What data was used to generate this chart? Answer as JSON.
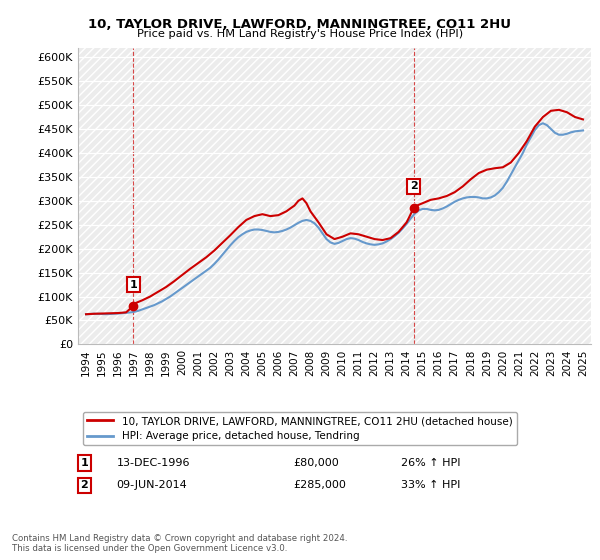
{
  "title1": "10, TAYLOR DRIVE, LAWFORD, MANNINGTREE, CO11 2HU",
  "title2": "Price paid vs. HM Land Registry's House Price Index (HPI)",
  "legend_line1": "10, TAYLOR DRIVE, LAWFORD, MANNINGTREE, CO11 2HU (detached house)",
  "legend_line2": "HPI: Average price, detached house, Tendring",
  "sale1_label": "1",
  "sale1_date": "13-DEC-1996",
  "sale1_price": "£80,000",
  "sale1_hpi": "26% ↑ HPI",
  "sale2_label": "2",
  "sale2_date": "09-JUN-2014",
  "sale2_price": "£285,000",
  "sale2_hpi": "33% ↑ HPI",
  "footnote": "Contains HM Land Registry data © Crown copyright and database right 2024.\nThis data is licensed under the Open Government Licence v3.0.",
  "red_color": "#cc0000",
  "blue_color": "#6699cc",
  "ylim": [
    0,
    620000
  ],
  "yticks": [
    0,
    50000,
    100000,
    150000,
    200000,
    250000,
    300000,
    350000,
    400000,
    450000,
    500000,
    550000,
    600000
  ],
  "ytick_labels": [
    "£0",
    "£50K",
    "£100K",
    "£150K",
    "£200K",
    "£250K",
    "£300K",
    "£350K",
    "£400K",
    "£450K",
    "£500K",
    "£550K",
    "£600K"
  ],
  "xmin": 1993.5,
  "xmax": 2025.5,
  "vline1_x": 1996.95,
  "vline2_x": 2014.44,
  "sale1_x": 1996.95,
  "sale1_y": 80000,
  "sale2_x": 2014.44,
  "sale2_y": 285000,
  "hpi_x": [
    1994.0,
    1994.25,
    1994.5,
    1994.75,
    1995.0,
    1995.25,
    1995.5,
    1995.75,
    1996.0,
    1996.25,
    1996.5,
    1996.75,
    1997.0,
    1997.25,
    1997.5,
    1997.75,
    1998.0,
    1998.25,
    1998.5,
    1998.75,
    1999.0,
    1999.25,
    1999.5,
    1999.75,
    2000.0,
    2000.25,
    2000.5,
    2000.75,
    2001.0,
    2001.25,
    2001.5,
    2001.75,
    2002.0,
    2002.25,
    2002.5,
    2002.75,
    2003.0,
    2003.25,
    2003.5,
    2003.75,
    2004.0,
    2004.25,
    2004.5,
    2004.75,
    2005.0,
    2005.25,
    2005.5,
    2005.75,
    2006.0,
    2006.25,
    2006.5,
    2006.75,
    2007.0,
    2007.25,
    2007.5,
    2007.75,
    2008.0,
    2008.25,
    2008.5,
    2008.75,
    2009.0,
    2009.25,
    2009.5,
    2009.75,
    2010.0,
    2010.25,
    2010.5,
    2010.75,
    2011.0,
    2011.25,
    2011.5,
    2011.75,
    2012.0,
    2012.25,
    2012.5,
    2012.75,
    2013.0,
    2013.25,
    2013.5,
    2013.75,
    2014.0,
    2014.25,
    2014.5,
    2014.75,
    2015.0,
    2015.25,
    2015.5,
    2015.75,
    2016.0,
    2016.25,
    2016.5,
    2016.75,
    2017.0,
    2017.25,
    2017.5,
    2017.75,
    2018.0,
    2018.25,
    2018.5,
    2018.75,
    2019.0,
    2019.25,
    2019.5,
    2019.75,
    2020.0,
    2020.25,
    2020.5,
    2020.75,
    2021.0,
    2021.25,
    2021.5,
    2021.75,
    2022.0,
    2022.25,
    2022.5,
    2022.75,
    2023.0,
    2023.25,
    2023.5,
    2023.75,
    2024.0,
    2024.25,
    2024.5,
    2024.75,
    2025.0
  ],
  "hpi_y": [
    63000,
    63500,
    64000,
    63800,
    63500,
    63200,
    63500,
    64000,
    64500,
    65200,
    66000,
    66800,
    68000,
    70000,
    73000,
    76000,
    79000,
    82000,
    86000,
    90000,
    95000,
    100000,
    106000,
    112000,
    118000,
    124000,
    130000,
    136000,
    142000,
    148000,
    154000,
    160000,
    168000,
    177000,
    187000,
    197000,
    207000,
    216000,
    224000,
    230000,
    235000,
    238000,
    240000,
    240000,
    239000,
    237000,
    235000,
    234000,
    235000,
    237000,
    240000,
    244000,
    249000,
    254000,
    258000,
    260000,
    258000,
    253000,
    244000,
    232000,
    220000,
    213000,
    210000,
    212000,
    216000,
    220000,
    222000,
    221000,
    218000,
    214000,
    211000,
    209000,
    208000,
    209000,
    211000,
    215000,
    220000,
    226000,
    233000,
    242000,
    252000,
    263000,
    273000,
    280000,
    283000,
    283000,
    281000,
    280000,
    281000,
    284000,
    288000,
    293000,
    298000,
    302000,
    305000,
    307000,
    308000,
    308000,
    307000,
    305000,
    305000,
    307000,
    311000,
    318000,
    327000,
    340000,
    355000,
    370000,
    385000,
    400000,
    418000,
    433000,
    448000,
    458000,
    462000,
    458000,
    450000,
    442000,
    438000,
    438000,
    440000,
    443000,
    445000,
    446000,
    447000
  ],
  "price_x": [
    1994.0,
    1994.5,
    1995.0,
    1995.5,
    1996.0,
    1996.5,
    1996.95,
    1997.0,
    1997.5,
    1998.0,
    1998.5,
    1999.0,
    1999.5,
    2000.0,
    2000.5,
    2001.0,
    2001.5,
    2002.0,
    2002.5,
    2003.0,
    2003.5,
    2004.0,
    2004.5,
    2005.0,
    2005.5,
    2006.0,
    2006.5,
    2007.0,
    2007.25,
    2007.5,
    2007.75,
    2008.0,
    2008.5,
    2009.0,
    2009.5,
    2010.0,
    2010.5,
    2011.0,
    2011.5,
    2012.0,
    2012.5,
    2013.0,
    2013.5,
    2014.0,
    2014.44,
    2014.5,
    2015.0,
    2015.5,
    2016.0,
    2016.5,
    2017.0,
    2017.5,
    2018.0,
    2018.5,
    2019.0,
    2019.5,
    2020.0,
    2020.5,
    2021.0,
    2021.5,
    2022.0,
    2022.5,
    2023.0,
    2023.5,
    2024.0,
    2024.5,
    2025.0
  ],
  "price_y": [
    63000,
    64000,
    64500,
    65000,
    65500,
    67000,
    80000,
    85000,
    92000,
    100000,
    110000,
    120000,
    132000,
    145000,
    158000,
    170000,
    182000,
    196000,
    212000,
    228000,
    245000,
    260000,
    268000,
    272000,
    268000,
    270000,
    278000,
    290000,
    300000,
    305000,
    295000,
    278000,
    255000,
    230000,
    220000,
    225000,
    232000,
    230000,
    225000,
    220000,
    218000,
    222000,
    235000,
    255000,
    285000,
    288000,
    295000,
    302000,
    305000,
    310000,
    318000,
    330000,
    345000,
    358000,
    365000,
    368000,
    370000,
    380000,
    400000,
    425000,
    455000,
    475000,
    488000,
    490000,
    485000,
    475000,
    470000
  ]
}
